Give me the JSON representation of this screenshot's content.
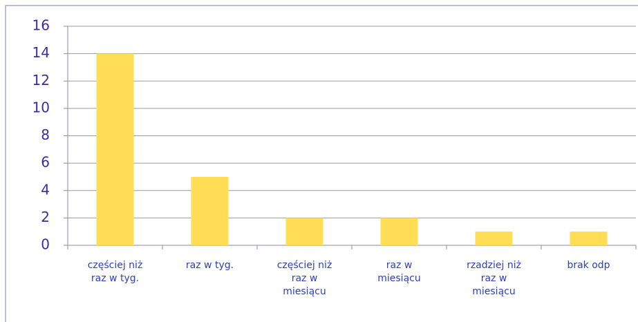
{
  "chart_data": {
    "type": "bar",
    "categories": [
      "częściej niż raz w tyg.",
      "raz w tyg.",
      "częściej niż raz w miesiącu",
      "raz w miesiącu",
      "rzadziej niż raz w miesiącu",
      "brak odp"
    ],
    "values": [
      14,
      5,
      2,
      2,
      1,
      1
    ],
    "color": "#ffdd55",
    "ylim": [
      0,
      16
    ],
    "yticks": [
      0,
      2,
      4,
      6,
      8,
      10,
      12,
      14,
      16
    ],
    "grid": true
  }
}
